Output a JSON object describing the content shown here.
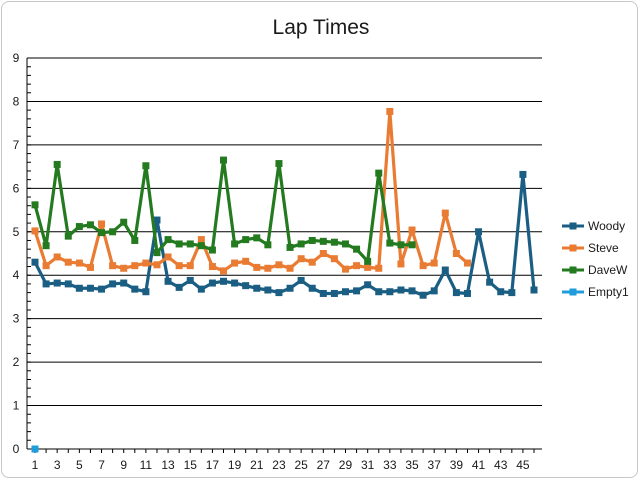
{
  "chart_data": {
    "type": "line",
    "title": "Lap Times",
    "xlabel": "",
    "ylabel": "",
    "ylim": [
      0,
      9
    ],
    "yticks": [
      0,
      1,
      2,
      3,
      4,
      5,
      6,
      7,
      8,
      9
    ],
    "xlim": [
      1,
      46
    ],
    "xticks": [
      1,
      3,
      5,
      7,
      9,
      11,
      13,
      15,
      17,
      19,
      21,
      23,
      25,
      27,
      29,
      31,
      33,
      35,
      37,
      39,
      41,
      43,
      45
    ],
    "grid": "horizontal",
    "legend_position": "right",
    "series": [
      {
        "name": "Woody",
        "color": "#1b5e84",
        "x": [
          1,
          2,
          3,
          4,
          5,
          6,
          7,
          8,
          9,
          10,
          11,
          12,
          13,
          14,
          15,
          16,
          17,
          18,
          19,
          20,
          21,
          22,
          23,
          24,
          25,
          26,
          27,
          28,
          29,
          30,
          31,
          32,
          33,
          34,
          35,
          36,
          37,
          38,
          39,
          40,
          41,
          42,
          43,
          44,
          45,
          46
        ],
        "values": [
          4.3,
          3.8,
          3.82,
          3.8,
          3.7,
          3.7,
          3.68,
          3.8,
          3.82,
          3.68,
          3.62,
          5.27,
          3.86,
          3.72,
          3.88,
          3.68,
          3.82,
          3.86,
          3.82,
          3.76,
          3.7,
          3.66,
          3.6,
          3.7,
          3.88,
          3.7,
          3.58,
          3.58,
          3.62,
          3.64,
          3.78,
          3.62,
          3.62,
          3.66,
          3.64,
          3.54,
          3.64,
          4.12,
          3.6,
          3.58,
          5.0,
          3.84,
          3.62,
          3.6,
          6.32,
          3.66
        ]
      },
      {
        "name": "Steve",
        "color": "#e97b32",
        "x": [
          1,
          2,
          3,
          4,
          5,
          6,
          7,
          8,
          9,
          10,
          11,
          12,
          13,
          14,
          15,
          16,
          17,
          18,
          19,
          20,
          21,
          22,
          23,
          24,
          25,
          26,
          27,
          28,
          29,
          30,
          31,
          32,
          33,
          34,
          35,
          36,
          37,
          38,
          39,
          40
        ],
        "values": [
          5.02,
          4.22,
          4.42,
          4.3,
          4.28,
          4.18,
          5.18,
          4.22,
          4.16,
          4.22,
          4.28,
          4.24,
          4.42,
          4.22,
          4.22,
          4.82,
          4.2,
          4.1,
          4.28,
          4.32,
          4.18,
          4.16,
          4.24,
          4.16,
          4.38,
          4.3,
          4.5,
          4.38,
          4.14,
          4.22,
          4.18,
          4.16,
          7.77,
          4.26,
          5.04,
          4.22,
          4.28,
          5.43,
          4.5,
          4.28
        ]
      },
      {
        "name": "DaveW",
        "color": "#237a1f",
        "x": [
          1,
          2,
          3,
          4,
          5,
          6,
          7,
          8,
          9,
          10,
          11,
          12,
          13,
          14,
          15,
          16,
          17,
          18,
          19,
          20,
          21,
          22,
          23,
          24,
          25,
          26,
          27,
          28,
          29,
          30,
          31,
          32,
          33,
          34,
          35
        ],
        "values": [
          5.62,
          4.68,
          6.55,
          4.9,
          5.12,
          5.16,
          4.98,
          5.0,
          5.22,
          4.8,
          6.52,
          4.52,
          4.82,
          4.72,
          4.72,
          4.68,
          4.58,
          6.65,
          4.72,
          4.82,
          4.86,
          4.7,
          6.57,
          4.64,
          4.72,
          4.8,
          4.78,
          4.76,
          4.72,
          4.6,
          4.32,
          6.35,
          4.74,
          4.7,
          4.7
        ]
      },
      {
        "name": "Empty1",
        "color": "#1f9ddb",
        "x": [
          1
        ],
        "values": [
          0
        ]
      }
    ]
  }
}
